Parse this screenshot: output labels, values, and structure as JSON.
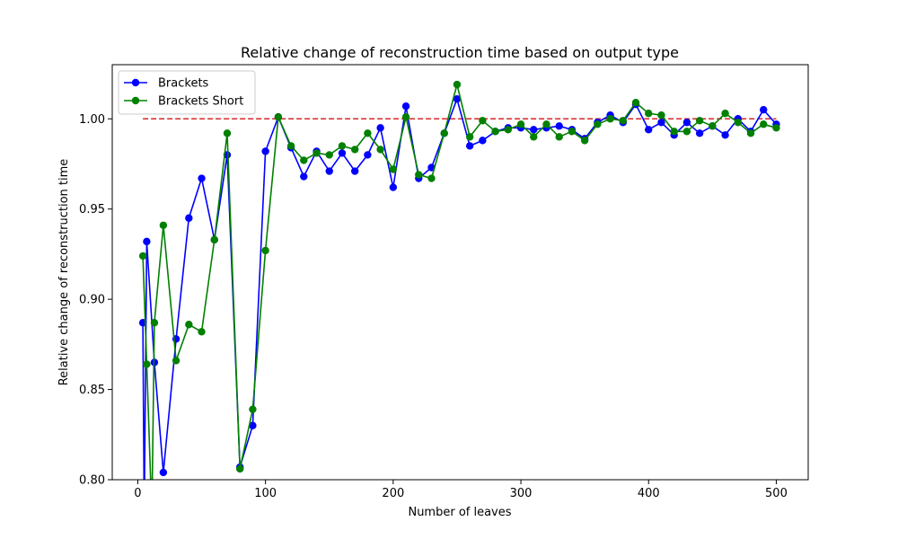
{
  "chart_data": {
    "type": "line",
    "title": "Relative change of reconstruction time based on output type",
    "xlabel": "Number of leaves",
    "ylabel": "Relative change of reconstruction time",
    "xlim": [
      -20,
      525
    ],
    "ylim": [
      0.8,
      1.03
    ],
    "xticks": [
      0,
      100,
      200,
      300,
      400,
      500
    ],
    "yticks": [
      0.8,
      0.85,
      0.9,
      0.95,
      1.0
    ],
    "yticks_labels": [
      "0.80",
      "0.85",
      "0.90",
      "0.95",
      "1.00"
    ],
    "legend_position": "top-left",
    "grid": false,
    "reference_line": {
      "y": 1.0,
      "x_range": [
        4,
        500
      ],
      "color": "#d62728",
      "style": "dashed"
    },
    "x": [
      4,
      7,
      13,
      20,
      30,
      40,
      50,
      60,
      70,
      80,
      90,
      100,
      110,
      120,
      130,
      140,
      150,
      160,
      170,
      180,
      190,
      200,
      210,
      220,
      230,
      240,
      250,
      260,
      270,
      280,
      290,
      300,
      310,
      320,
      330,
      340,
      350,
      360,
      370,
      380,
      390,
      400,
      410,
      420,
      430,
      440,
      450,
      460,
      470,
      480,
      490,
      500
    ],
    "series": [
      {
        "name": "Brackets",
        "color": "#0000ff",
        "values": [
          0.887,
          0.932,
          0.865,
          0.804,
          0.878,
          0.945,
          0.967,
          0.933,
          0.98,
          0.807,
          0.83,
          0.982,
          1.001,
          0.984,
          0.968,
          0.982,
          0.971,
          0.981,
          0.971,
          0.98,
          0.995,
          0.962,
          1.007,
          0.967,
          0.973,
          0.992,
          1.011,
          0.985,
          0.988,
          0.993,
          0.995,
          0.995,
          0.994,
          0.995,
          0.996,
          0.994,
          0.989,
          0.998,
          1.002,
          0.998,
          1.008,
          0.994,
          0.998,
          0.991,
          0.998,
          0.992,
          0.996,
          0.991,
          1.0,
          0.993,
          1.005,
          0.997
        ]
      },
      {
        "name": "Brackets Short",
        "color": "#008000",
        "values": [
          0.924,
          0.864,
          0.887,
          0.941,
          0.866,
          0.886,
          0.882,
          0.933,
          0.992,
          0.806,
          0.839,
          0.927,
          1.001,
          0.985,
          0.977,
          0.981,
          0.98,
          0.985,
          0.983,
          0.992,
          0.983,
          0.972,
          1.001,
          0.969,
          0.967,
          0.992,
          1.019,
          0.99,
          0.999,
          0.993,
          0.994,
          0.997,
          0.99,
          0.997,
          0.99,
          0.993,
          0.988,
          0.997,
          1.0,
          0.999,
          1.009,
          1.003,
          1.002,
          0.993,
          0.993,
          0.999,
          0.996,
          1.003,
          0.998,
          0.992,
          0.997,
          0.995
        ]
      }
    ],
    "off_chart_drops": [
      {
        "series": "Brackets",
        "x": 5
      },
      {
        "series": "Brackets Short",
        "x": 11
      }
    ]
  }
}
